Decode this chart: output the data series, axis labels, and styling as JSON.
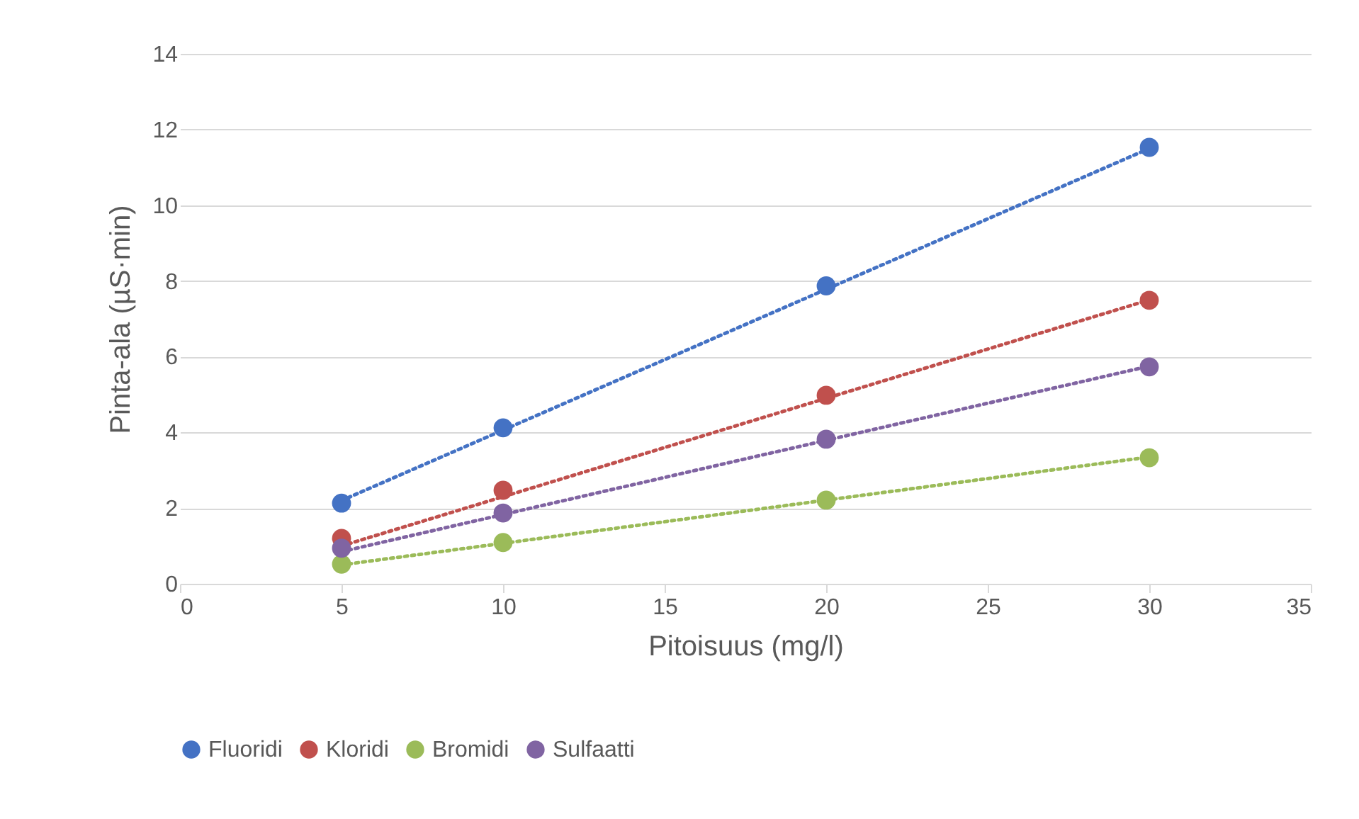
{
  "chart_data": {
    "type": "scatter",
    "xlabel": "Pitoisuus (mg/l)",
    "ylabel": "Pinta-ala (µS·min)",
    "x": [
      5,
      10,
      20,
      30
    ],
    "series": [
      {
        "name": "Fluoridi",
        "color": "#4472c4",
        "values": [
          2.13,
          4.12,
          7.87,
          11.53
        ]
      },
      {
        "name": "Kloridi",
        "color": "#c0504d",
        "values": [
          1.2,
          2.47,
          4.98,
          7.49
        ]
      },
      {
        "name": "Bromidi",
        "color": "#9bbb59",
        "values": [
          0.52,
          1.09,
          2.21,
          3.33
        ]
      },
      {
        "name": "Sulfaatti",
        "color": "#8064a2",
        "values": [
          0.94,
          1.87,
          3.82,
          5.73
        ]
      },
      {
        "type": "line",
        "color": "#4472c4",
        "values": [
          2.2,
          4.06,
          7.78,
          11.5
        ],
        "line_style": "dotted",
        "marker": "none"
      },
      {
        "type": "line",
        "color": "#c0504d",
        "values": [
          1.0,
          2.3,
          4.9,
          7.5
        ],
        "line_style": "dotted",
        "marker": "none"
      },
      {
        "type": "line",
        "color": "#9bbb59",
        "values": [
          0.5,
          1.07,
          2.21,
          3.35
        ],
        "line_style": "dotted",
        "marker": "none"
      },
      {
        "type": "line",
        "color": "#8064a2",
        "values": [
          0.85,
          1.83,
          3.79,
          5.75
        ],
        "line_style": "dotted",
        "marker": "none"
      }
    ],
    "xlim": [
      0,
      35
    ],
    "xticks": [
      0,
      5,
      10,
      15,
      20,
      25,
      30,
      35
    ],
    "ylim": [
      0,
      14
    ],
    "yticks": [
      0,
      2,
      4,
      6,
      8,
      10,
      12,
      14
    ],
    "grid": "y",
    "legend": "bottom",
    "marker": "circle"
  }
}
